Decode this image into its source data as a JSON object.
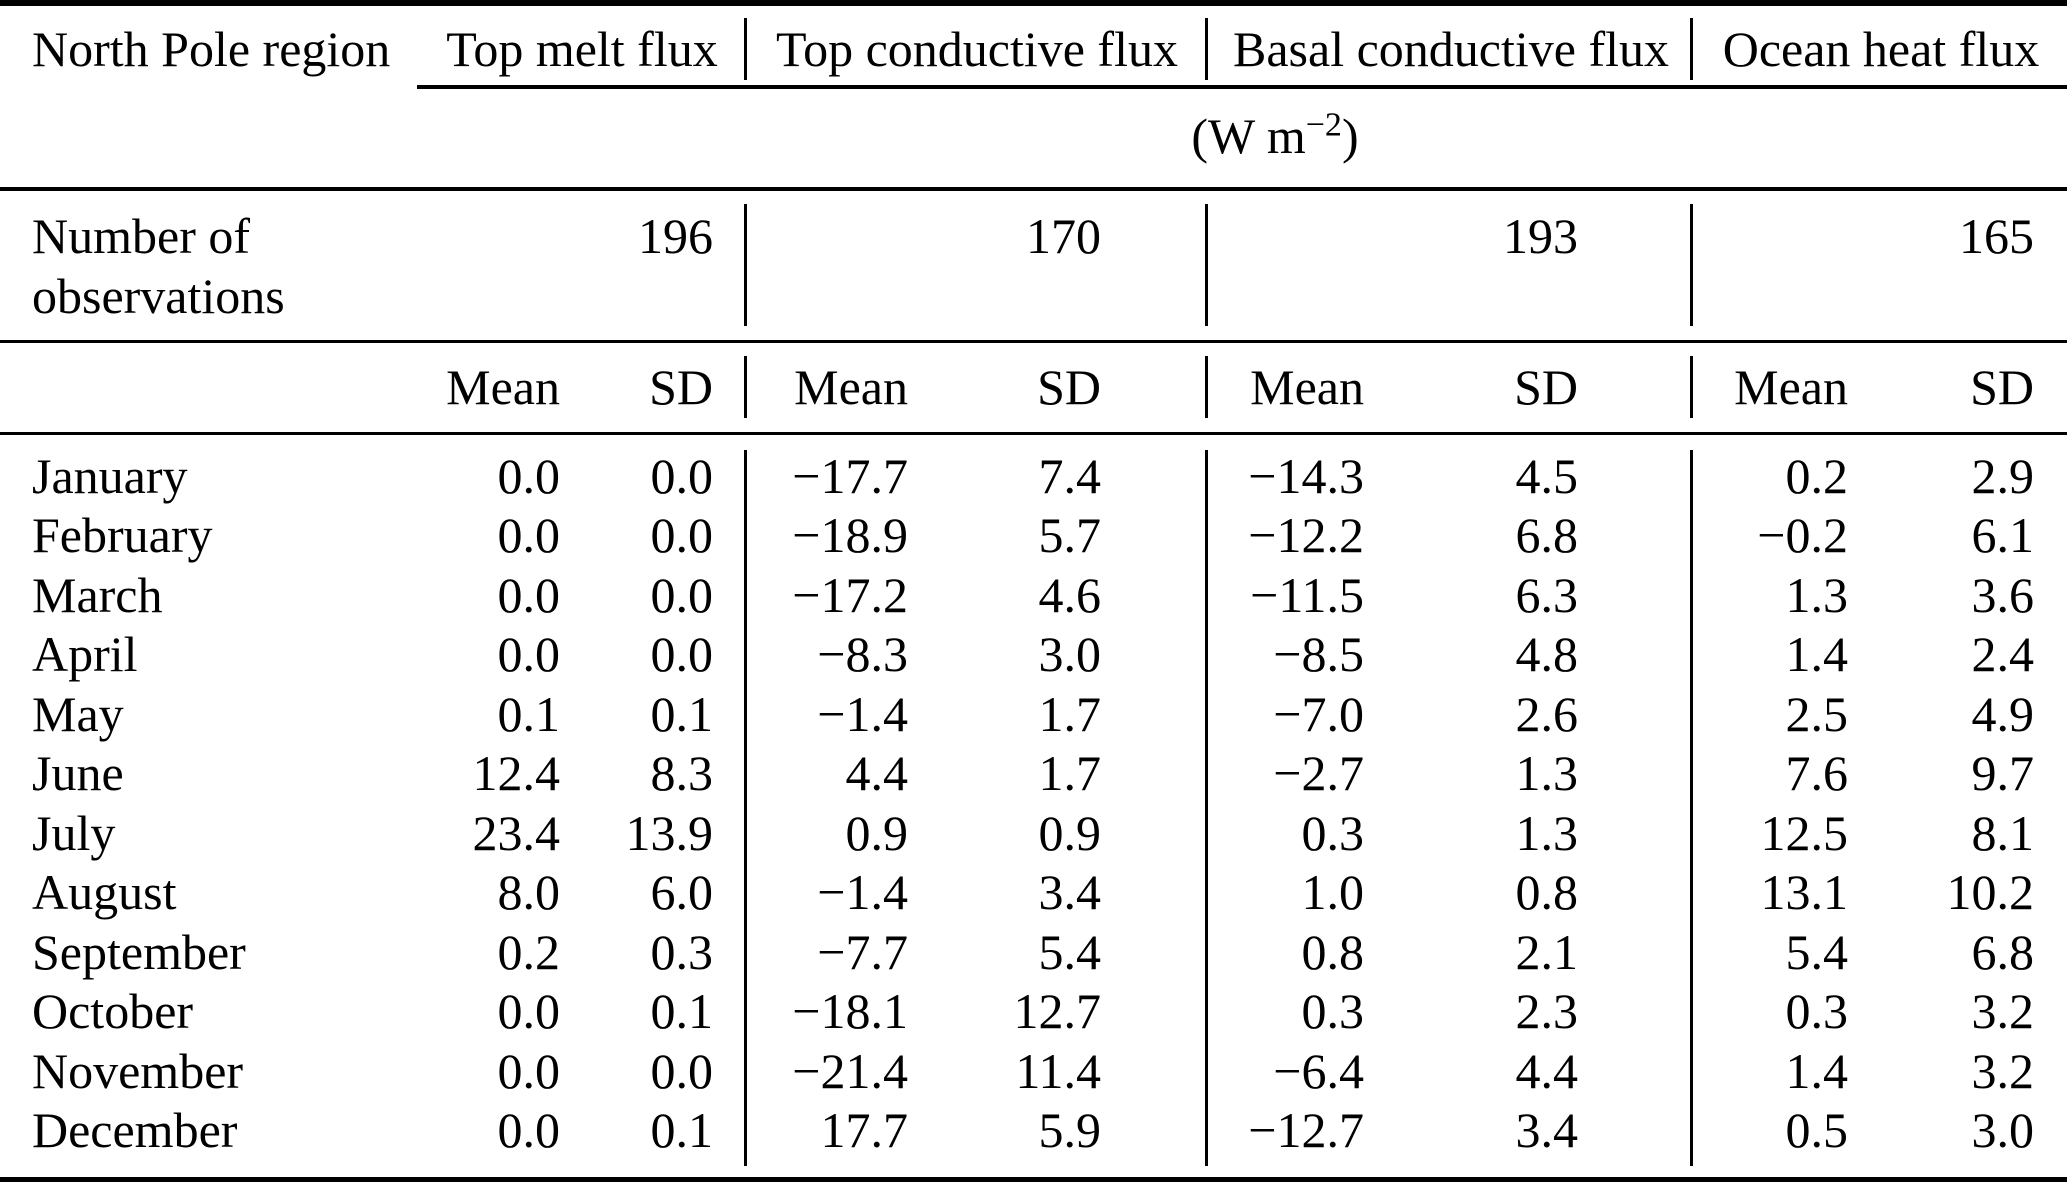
{
  "page": {
    "background_color": "#ffffff",
    "text_color": "#000000",
    "rule_color": "#000000"
  },
  "chart_data": {
    "type": "table",
    "corner_header": "North Pole region",
    "column_groups": [
      {
        "label": "Top melt flux"
      },
      {
        "label": "Top conductive flux"
      },
      {
        "label": "Basal conductive flux"
      },
      {
        "label": "Ocean heat flux"
      }
    ],
    "unit": {
      "prefix": "(W m",
      "exponent": "−2",
      "suffix": ")"
    },
    "observations_row": {
      "label_line1": "Number of",
      "label_line2": "observations",
      "values": [
        "196",
        "170",
        "193",
        "165"
      ]
    },
    "stat_headers": {
      "mean": "Mean",
      "sd": "SD"
    },
    "rows": [
      {
        "month": "January",
        "values": [
          "0.0",
          "0.0",
          "−17.7",
          "7.4",
          "−14.3",
          "4.5",
          "0.2",
          "2.9"
        ]
      },
      {
        "month": "February",
        "values": [
          "0.0",
          "0.0",
          "−18.9",
          "5.7",
          "−12.2",
          "6.8",
          "−0.2",
          "6.1"
        ]
      },
      {
        "month": "March",
        "values": [
          "0.0",
          "0.0",
          "−17.2",
          "4.6",
          "−11.5",
          "6.3",
          "1.3",
          "3.6"
        ]
      },
      {
        "month": "April",
        "values": [
          "0.0",
          "0.0",
          "−8.3",
          "3.0",
          "−8.5",
          "4.8",
          "1.4",
          "2.4"
        ]
      },
      {
        "month": "May",
        "values": [
          "0.1",
          "0.1",
          "−1.4",
          "1.7",
          "−7.0",
          "2.6",
          "2.5",
          "4.9"
        ]
      },
      {
        "month": "June",
        "values": [
          "12.4",
          "8.3",
          "4.4",
          "1.7",
          "−2.7",
          "1.3",
          "7.6",
          "9.7"
        ]
      },
      {
        "month": "July",
        "values": [
          "23.4",
          "13.9",
          "0.9",
          "0.9",
          "0.3",
          "1.3",
          "12.5",
          "8.1"
        ]
      },
      {
        "month": "August",
        "values": [
          "8.0",
          "6.0",
          "−1.4",
          "3.4",
          "1.0",
          "0.8",
          "13.1",
          "10.2"
        ]
      },
      {
        "month": "September",
        "values": [
          "0.2",
          "0.3",
          "−7.7",
          "5.4",
          "0.8",
          "2.1",
          "5.4",
          "6.8"
        ]
      },
      {
        "month": "October",
        "values": [
          "0.0",
          "0.1",
          "−18.1",
          "12.7",
          "0.3",
          "2.3",
          "0.3",
          "3.2"
        ]
      },
      {
        "month": "November",
        "values": [
          "0.0",
          "0.0",
          "−21.4",
          "11.4",
          "−6.4",
          "4.4",
          "1.4",
          "3.2"
        ]
      },
      {
        "month": "December",
        "values": [
          "0.0",
          "0.1",
          "17.7",
          "5.9",
          "−12.7",
          "3.4",
          "0.5",
          "3.0"
        ]
      }
    ]
  }
}
